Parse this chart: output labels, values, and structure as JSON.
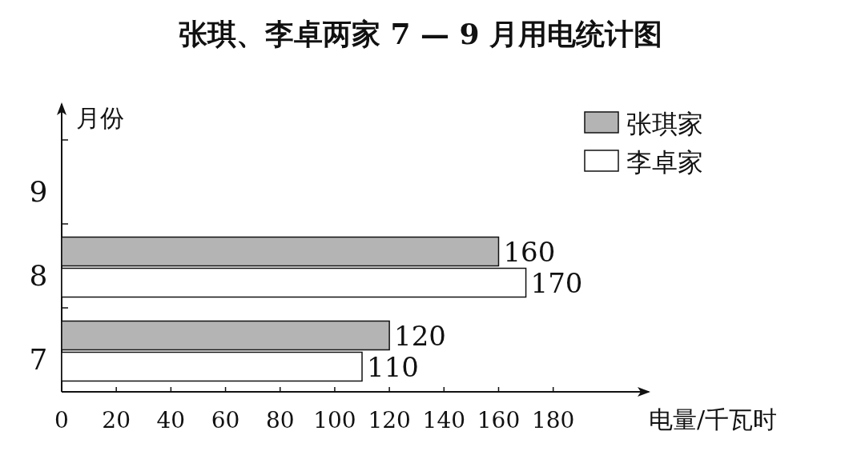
{
  "chart_data": {
    "type": "bar",
    "orientation": "horizontal",
    "title": "张琪、李卓两家 7 — 9 月用电统计图",
    "xlabel": "电量/千瓦时",
    "ylabel": "月份",
    "categories": [
      "9",
      "8",
      "7"
    ],
    "series": [
      {
        "name": "张琪家",
        "color": "#b4b4b4",
        "values": [
          null,
          160,
          120
        ]
      },
      {
        "name": "李卓家",
        "color": "#ffffff",
        "values": [
          null,
          170,
          110
        ]
      }
    ],
    "xlim": [
      0,
      215
    ],
    "xticks": [
      0,
      20,
      40,
      60,
      80,
      100,
      120,
      140,
      160,
      180
    ],
    "data_labels": true,
    "legend": "top right"
  }
}
